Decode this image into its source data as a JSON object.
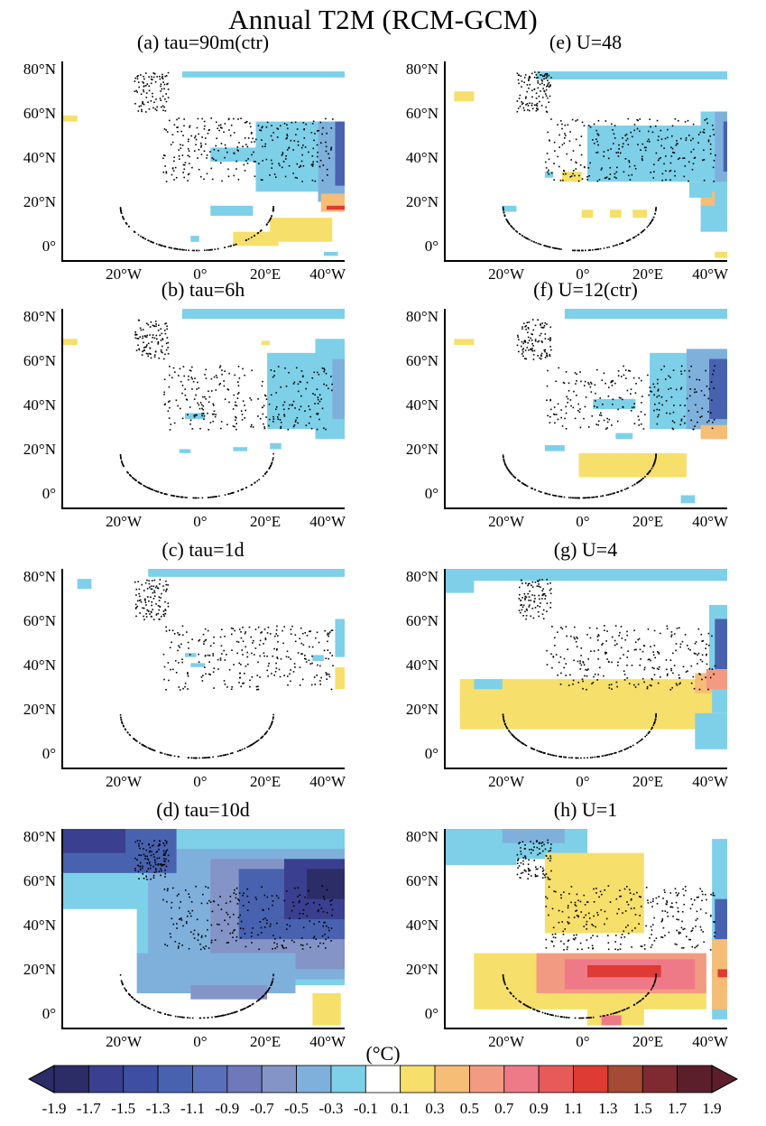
{
  "title": "Annual T2M (RCM-GCM)",
  "unit": "(°C)",
  "colorbar": {
    "colors": [
      "#2c2c67",
      "#3b3f8f",
      "#3e4fa3",
      "#4862b0",
      "#5a6fba",
      "#6f78b9",
      "#8494c6",
      "#7fb0dc",
      "#7ed0e8",
      "#ffffff",
      "#f6df6b",
      "#f6bd77",
      "#f39b82",
      "#ee7a88",
      "#e85a5a",
      "#dd3b33",
      "#a44a35",
      "#7f2a30",
      "#5b1f2c"
    ],
    "labels": [
      "-1.9",
      "-1.7",
      "-1.5",
      "-1.3",
      "-1.1",
      "-0.9",
      "-0.7",
      "-0.5",
      "-0.3",
      "-0.1",
      "0.1",
      "0.3",
      "0.5",
      "0.7",
      "0.9",
      "1.1",
      "1.3",
      "1.5",
      "1.7",
      "1.9"
    ]
  },
  "axes": {
    "xticks": [
      "20°W",
      "0°",
      "20°E",
      "40°W"
    ],
    "yticks": [
      "80°N",
      "60°N",
      "40°N",
      "20°N",
      "0°"
    ]
  },
  "chart_data": [
    {
      "type": "heatmap",
      "panel": "a",
      "title": "(a) tau=90m(ctr)"
    },
    {
      "type": "heatmap",
      "panel": "b",
      "title": "(b) tau=6h"
    },
    {
      "type": "heatmap",
      "panel": "c",
      "title": "(c) tau=1d"
    },
    {
      "type": "heatmap",
      "panel": "d",
      "title": "(d) tau=10d"
    },
    {
      "type": "heatmap",
      "panel": "e",
      "title": "(e) U=48"
    },
    {
      "type": "heatmap",
      "panel": "f",
      "title": "(f) U=12(ctr)"
    },
    {
      "type": "heatmap",
      "panel": "g",
      "title": "(g) U=4"
    },
    {
      "type": "heatmap",
      "panel": "h",
      "title": "(h) U=1"
    }
  ]
}
